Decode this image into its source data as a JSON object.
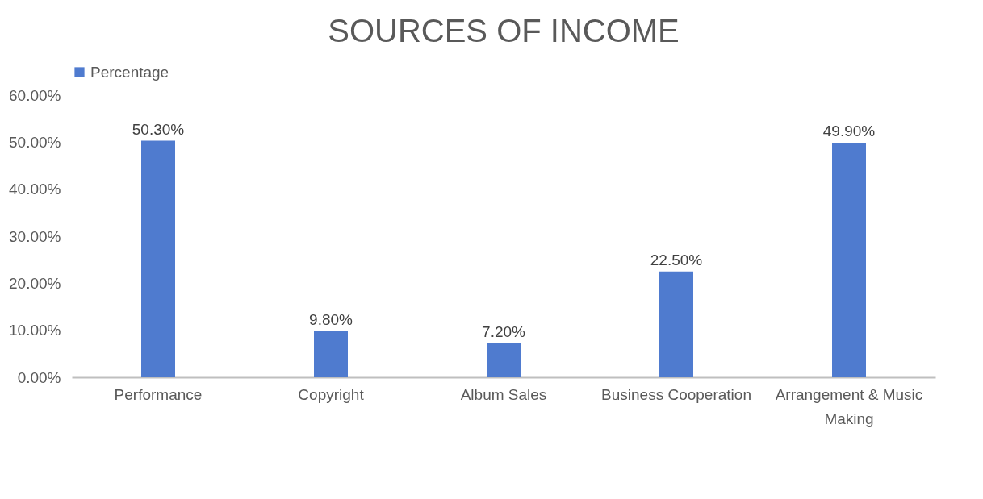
{
  "chart_data": {
    "type": "bar",
    "title": "SOURCES OF INCOME",
    "categories": [
      "Performance",
      "Copyright",
      "Album Sales",
      "Business Cooperation",
      "Arrangement & Music Making"
    ],
    "series": [
      {
        "name": "Percentage",
        "color": "#4f7bcf",
        "values": [
          50.3,
          9.8,
          7.2,
          22.5,
          49.9
        ],
        "value_labels": [
          "50.30%",
          "9.80%",
          "7.20%",
          "22.50%",
          "49.90%"
        ]
      }
    ],
    "ylim": [
      0,
      60
    ],
    "yticks": [
      {
        "value": 0,
        "label": "0.00%"
      },
      {
        "value": 10,
        "label": "10.00%"
      },
      {
        "value": 20,
        "label": "20.00%"
      },
      {
        "value": 30,
        "label": "30.00%"
      },
      {
        "value": 40,
        "label": "40.00%"
      },
      {
        "value": 50,
        "label": "50.00%"
      },
      {
        "value": 60,
        "label": "60.00%"
      }
    ],
    "grid": false,
    "legend": "top"
  }
}
